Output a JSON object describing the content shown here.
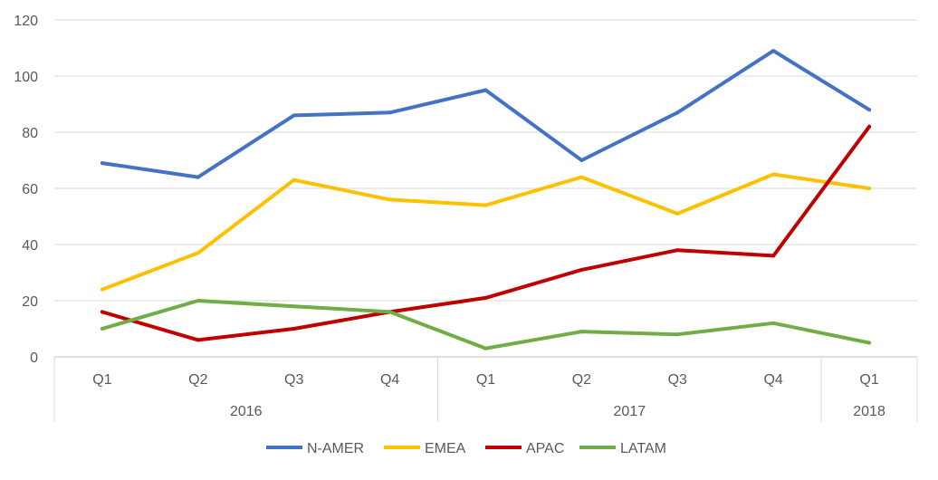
{
  "chart_data": {
    "type": "line",
    "categories": [
      "Q1",
      "Q2",
      "Q3",
      "Q4",
      "Q1",
      "Q2",
      "Q3",
      "Q4",
      "Q1"
    ],
    "groups": [
      {
        "label": "2016",
        "span": 4
      },
      {
        "label": "2017",
        "span": 4
      },
      {
        "label": "2018",
        "span": 1
      }
    ],
    "series": [
      {
        "name": "N-AMER",
        "color": "#4472C4",
        "values": [
          69,
          64,
          86,
          87,
          95,
          70,
          87,
          109,
          88
        ]
      },
      {
        "name": "EMEA",
        "color": "#FFC000",
        "values": [
          24,
          37,
          63,
          56,
          54,
          64,
          51,
          65,
          60
        ]
      },
      {
        "name": "APAC",
        "color": "#C00000",
        "values": [
          16,
          6,
          10,
          16,
          21,
          31,
          38,
          36,
          82
        ]
      },
      {
        "name": "LATAM",
        "color": "#70AD47",
        "values": [
          10,
          20,
          18,
          16,
          3,
          9,
          8,
          12,
          5
        ]
      }
    ],
    "ylim": [
      0,
      120
    ],
    "yticks": [
      0,
      20,
      40,
      60,
      80,
      100,
      120
    ],
    "grid": true,
    "legend": "bottom",
    "title": "",
    "xlabel": "",
    "ylabel": ""
  }
}
